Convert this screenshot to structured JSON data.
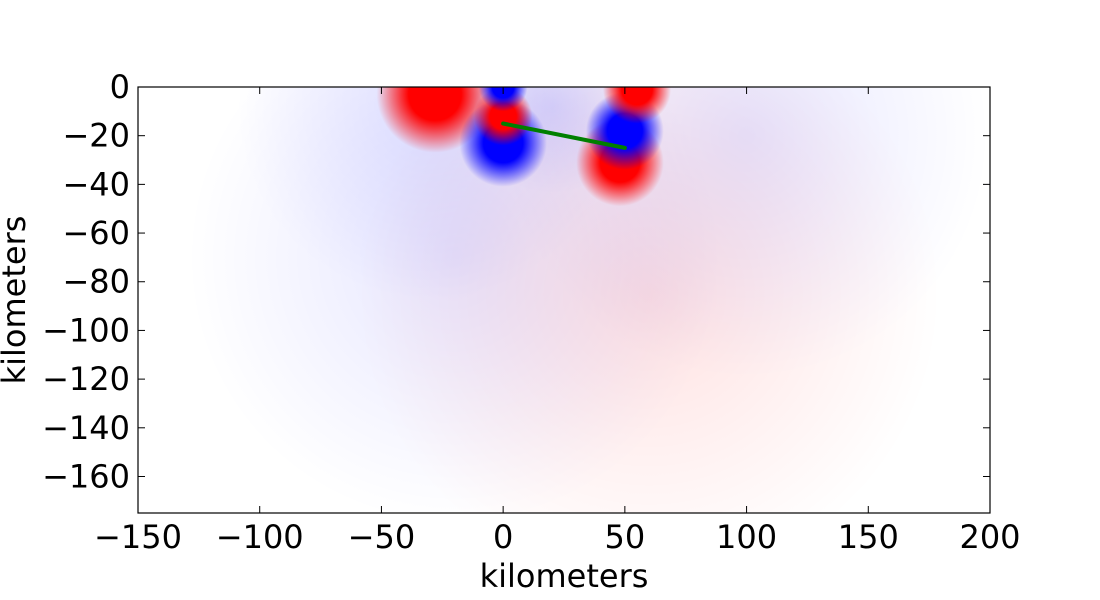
{
  "chart_data": {
    "type": "heatmap",
    "xlabel": "kilometers",
    "ylabel": "kilometers",
    "xlim": [
      -150,
      200
    ],
    "ylim": [
      -175,
      0
    ],
    "x_ticks": [
      -150,
      -100,
      -50,
      0,
      50,
      100,
      150,
      200
    ],
    "x_tick_labels": [
      "−150",
      "−100",
      "−50",
      "0",
      "50",
      "100",
      "150",
      "200"
    ],
    "y_ticks": [
      0,
      -20,
      -40,
      -60,
      -80,
      -100,
      -120,
      -140,
      -160
    ],
    "y_tick_labels": [
      "0",
      "−20",
      "−40",
      "−60",
      "−80",
      "−100",
      "−120",
      "−140",
      "−160"
    ],
    "colormap": "bwr",
    "colors": {
      "negative": "#0000ff",
      "positive": "#ff0000",
      "zero": "#ffffff",
      "fault": "#007f00"
    },
    "fault_line": {
      "start": [
        0,
        -15
      ],
      "end": [
        50,
        -25
      ]
    },
    "sources": [
      {
        "x": 0,
        "y": -12,
        "sign": 1,
        "radius": 6
      },
      {
        "x": 0,
        "y": -23,
        "sign": -1,
        "radius": 9
      },
      {
        "x": 50,
        "y": -18,
        "sign": -1,
        "radius": 8
      },
      {
        "x": 48,
        "y": -31,
        "sign": 1,
        "radius": 9
      },
      {
        "x": 0,
        "y": 0,
        "sign": -1,
        "radius": 5
      },
      {
        "x": -28,
        "y": -3,
        "sign": 1,
        "radius": 12
      },
      {
        "x": 55,
        "y": -1,
        "sign": 1,
        "radius": 7
      },
      {
        "x": 20,
        "y": -8,
        "sign": -1,
        "radius": 18
      },
      {
        "x": 100,
        "y": -20,
        "sign": -1,
        "radius": 50
      },
      {
        "x": -30,
        "y": -8,
        "sign": -1,
        "radius": 40
      },
      {
        "x": -20,
        "y": -70,
        "sign": -1,
        "radius": 55
      },
      {
        "x": 60,
        "y": -85,
        "sign": 1,
        "radius": 60
      }
    ]
  }
}
